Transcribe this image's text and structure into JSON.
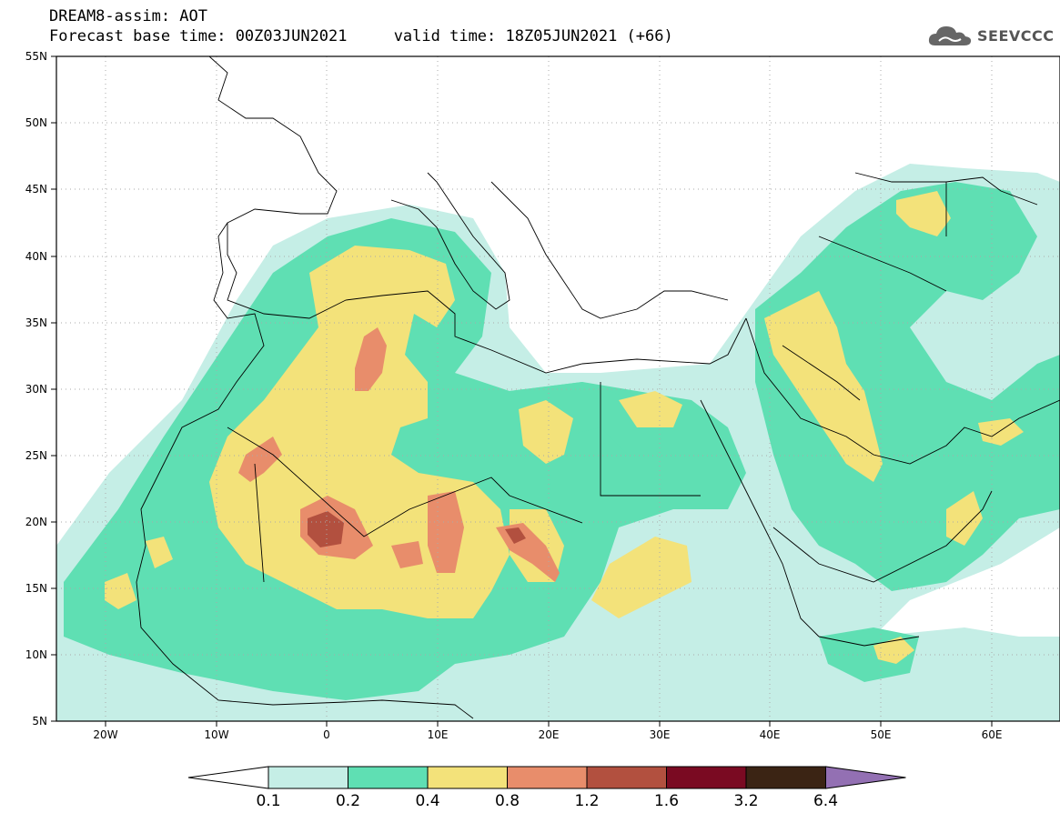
{
  "title": {
    "line1": "DREAM8-assim: AOT",
    "line2": "Forecast base time: 00Z03JUN2021     valid time: 18Z05JUN2021 (+66)"
  },
  "logo": {
    "text": "SEEVCCC",
    "icon": "cloud-icon",
    "color": "#555555"
  },
  "map": {
    "lat_labels": [
      "55N",
      "50N",
      "45N",
      "40N",
      "35N",
      "30N",
      "25N",
      "20N",
      "15N",
      "10N",
      "5N"
    ],
    "lon_labels": [
      "20W",
      "10W",
      "0",
      "10E",
      "20E",
      "30E",
      "40E",
      "50E",
      "60E"
    ],
    "extent": {
      "lon": [
        -25,
        65
      ],
      "lat": [
        5,
        55
      ]
    },
    "gridlines": "dotted"
  },
  "colorbar": {
    "labels": [
      "0.1",
      "0.2",
      "0.4",
      "0.8",
      "1.2",
      "1.6",
      "3.2",
      "6.4"
    ],
    "colors": [
      "#c5eee6",
      "#5fdfb3",
      "#f3e27a",
      "#e88d6b",
      "#b2503f",
      "#7a0a22",
      "#3b2414",
      "#9370b3"
    ],
    "under_color": "#ffffff"
  }
}
